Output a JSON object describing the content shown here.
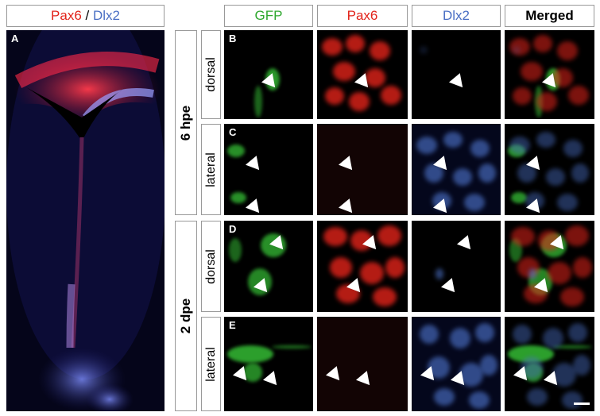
{
  "panelA": {
    "title_pax6": "Pax6",
    "title_sep": " / ",
    "title_dlx2": "Dlx2",
    "label": "A"
  },
  "columns": [
    {
      "label": "GFP",
      "color": "#2fa82f"
    },
    {
      "label": "Pax6",
      "color": "#e2231a"
    },
    {
      "label": "Dlx2",
      "color": "#4a6fc4"
    },
    {
      "label": "Merged",
      "color": "#000000"
    }
  ],
  "groups": [
    {
      "label": "6 hpe",
      "rows": [
        "dorsal",
        "lateral"
      ]
    },
    {
      "label": "2 dpe",
      "rows": [
        "dorsal",
        "lateral"
      ]
    }
  ],
  "panel_labels": [
    "B",
    "C",
    "D",
    "E"
  ],
  "colors": {
    "pax6": "#e2231a",
    "dlx2": "#4a6fc4",
    "gfp": "#2fa82f",
    "background": "#000000"
  }
}
